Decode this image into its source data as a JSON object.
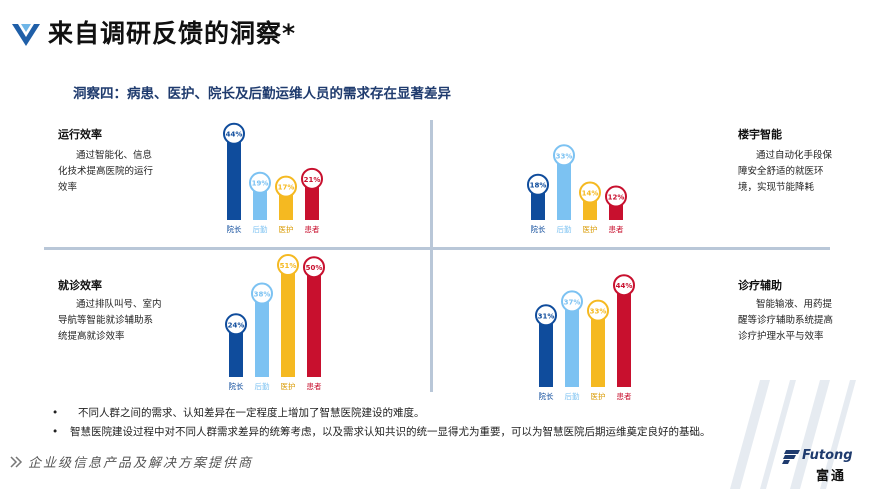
{
  "header": {
    "title": "来自调研反馈的洞察*"
  },
  "subtitle": "洞察四：病患、医护、院长及后勤运维人员的需求存在显著差异",
  "colors": {
    "院长": "#0f4c9c",
    "后勤": "#7cc2f2",
    "医护": "#f5b921",
    "患者": "#c8102e"
  },
  "chart_data": [
    {
      "type": "bar",
      "title": "运行效率",
      "description": "通过智能化、信息化技术提高医院的运行效率",
      "categories": [
        "院长",
        "后勤",
        "医护",
        "患者"
      ],
      "values": [
        44,
        19,
        17,
        21
      ],
      "labels": [
        "44%",
        "19%",
        "17%",
        "21%"
      ],
      "ylim": [
        0,
        51
      ]
    },
    {
      "type": "bar",
      "title": "楼宇智能",
      "description": "通过自动化手段保障安全舒适的就医环境，实现节能降耗",
      "categories": [
        "院长",
        "后勤",
        "医护",
        "患者"
      ],
      "values": [
        18,
        33,
        14,
        12
      ],
      "labels": [
        "18%",
        "33%",
        "14%",
        "12%"
      ],
      "ylim": [
        0,
        51
      ]
    },
    {
      "type": "bar",
      "title": "就诊效率",
      "description": "通过排队叫号、室内导航等智能就诊辅助系统提高就诊效率",
      "categories": [
        "院长",
        "后勤",
        "医护",
        "患者"
      ],
      "values": [
        24,
        38,
        51,
        50
      ],
      "labels": [
        "24%",
        "38%",
        "51%",
        "50%"
      ],
      "ylim": [
        0,
        51
      ]
    },
    {
      "type": "bar",
      "title": "诊疗辅助",
      "description": "智能输液、用药提醒等诊疗辅助系统提高诊疗护理水平与效率",
      "categories": [
        "院长",
        "后勤",
        "医护",
        "患者"
      ],
      "values": [
        31,
        37,
        33,
        44
      ],
      "labels": [
        "31%",
        "37%",
        "33%",
        "44%"
      ],
      "ylim": [
        0,
        51
      ]
    }
  ],
  "notes": [
    "不同人群之间的需求、认知差异在一定程度上增加了智慧医院建设的难度。",
    "智慧医院建设过程中对不同人群需求差异的统筹考虑，以及需求认知共识的统一显得尤为重要，可以为智慧医院后期运维奠定良好的基础。"
  ],
  "note_bullet": "•",
  "footer": {
    "slogan": "企业级信息产品及解决方案提供商",
    "brand_en": "Futong",
    "brand_cn": "富通"
  }
}
